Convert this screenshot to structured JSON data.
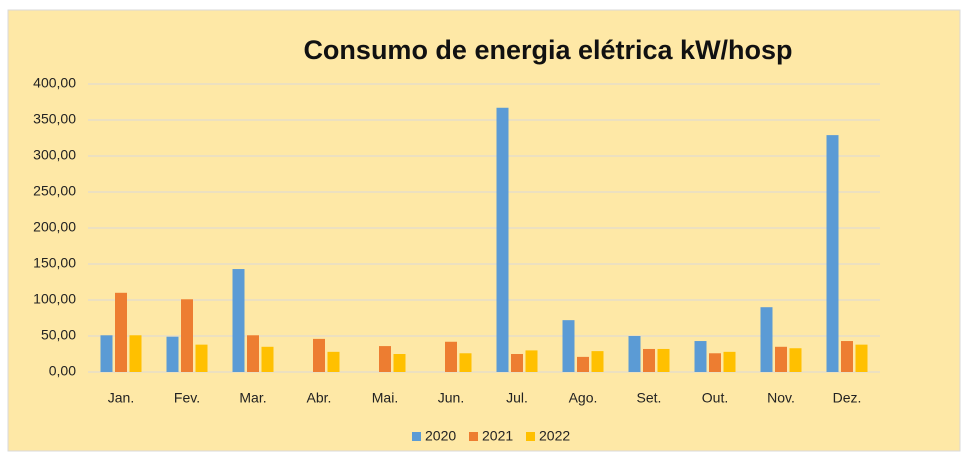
{
  "chart_data": {
    "type": "bar",
    "title": "Consumo de energia elétrica kW/hosp",
    "categories": [
      "Jan.",
      "Fev.",
      "Mar.",
      "Abr.",
      "Mai.",
      "Jun.",
      "Jul.",
      "Ago.",
      "Set.",
      "Out.",
      "Nov.",
      "Dez."
    ],
    "series": [
      {
        "name": "2020",
        "color": "#5b9bd5",
        "values": [
          51,
          49,
          143,
          0,
          0,
          0,
          367,
          72,
          50,
          43,
          90,
          329
        ]
      },
      {
        "name": "2021",
        "color": "#ed7d31",
        "values": [
          110,
          101,
          51,
          46,
          36,
          42,
          25,
          21,
          32,
          26,
          35,
          43
        ]
      },
      {
        "name": "2022",
        "color": "#ffc000",
        "values": [
          51,
          38,
          35,
          28,
          25,
          26,
          30,
          29,
          32,
          28,
          33,
          38
        ]
      }
    ],
    "ylim": [
      0,
      400
    ],
    "yticks": [
      {
        "value": 0,
        "label": "0,00"
      },
      {
        "value": 50,
        "label": "50,00"
      },
      {
        "value": 100,
        "label": "100,00"
      },
      {
        "value": 150,
        "label": "150,00"
      },
      {
        "value": 200,
        "label": "200,00"
      },
      {
        "value": 250,
        "label": "250,00"
      },
      {
        "value": 300,
        "label": "300,00"
      },
      {
        "value": 350,
        "label": "350,00"
      },
      {
        "value": 400,
        "label": "400,00"
      }
    ],
    "grid": true,
    "legend": "bottom"
  }
}
